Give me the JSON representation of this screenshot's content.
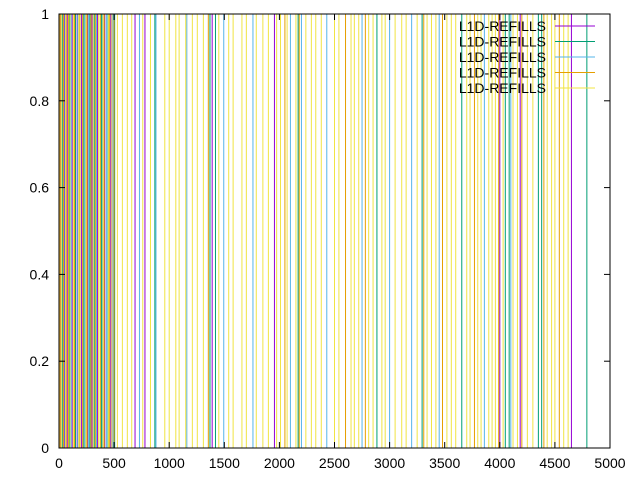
{
  "chart_data": {
    "type": "line",
    "title": "",
    "xlabel": "",
    "ylabel": "",
    "xlim": [
      0,
      5000
    ],
    "ylim": [
      0,
      1
    ],
    "x_ticks": [
      "0",
      "500",
      "1000",
      "1500",
      "2000",
      "2500",
      "3000",
      "3500",
      "4000",
      "4500",
      "5000"
    ],
    "y_ticks": [
      "0",
      "0.2",
      "0.4",
      "0.6",
      "0.8",
      "1"
    ],
    "grid": false,
    "legend_position": "top-right",
    "series": [
      {
        "name": "L1D-REFILLS",
        "color": "#9400d3",
        "x": [
          15,
          48,
          75,
          120,
          165,
          205,
          260,
          300,
          350,
          415,
          470,
          690,
          780,
          1390,
          1955,
          4000,
          4185,
          4650
        ]
      },
      {
        "name": "L1D-REFILLS",
        "color": "#009e73",
        "x": [
          30,
          95,
          150,
          225,
          280,
          320,
          385,
          445,
          505,
          870,
          1370,
          1420,
          2170,
          2885,
          3295,
          3655,
          4050,
          4085,
          4350,
          4380,
          4790
        ]
      },
      {
        "name": "L1D-REFILLS",
        "color": "#56b4e9",
        "x": [
          55,
          110,
          170,
          235,
          270,
          340,
          395,
          430,
          490,
          730,
          880,
          1160,
          1495,
          1760,
          2100,
          2200,
          2430,
          2750,
          3000,
          3200,
          3450,
          3860,
          4100
        ]
      },
      {
        "name": "L1D-REFILLS",
        "color": "#e69f00",
        "x": [
          10,
          40,
          65,
          85,
          140,
          190,
          215,
          255,
          290,
          330,
          375,
          410,
          460,
          500,
          1355,
          2050,
          2180,
          2600,
          2780,
          3310,
          3480,
          3770,
          3990,
          4200,
          4400,
          4540
        ]
      },
      {
        "name": "L1D-REFILLS",
        "color": "#f0e442",
        "x": [
          20,
          60,
          100,
          130,
          180,
          245,
          310,
          360,
          400,
          450,
          480,
          530,
          575,
          620,
          660,
          760,
          830,
          960,
          1000,
          1060,
          1090,
          1150,
          1210,
          1255,
          1310,
          1450,
          1540,
          1580,
          1660,
          1700,
          1790,
          1850,
          1900,
          1975,
          2010,
          2070,
          2150,
          2240,
          2290,
          2330,
          2380,
          2500,
          2540,
          2650,
          2680,
          2720,
          2810,
          2850,
          2930,
          2960,
          3050,
          3110,
          3150,
          3250,
          3340,
          3380,
          3420,
          3520,
          3560,
          3600,
          3700,
          3730,
          3800,
          3830,
          3900,
          3930,
          3960,
          4030,
          4120,
          4160,
          4250,
          4300,
          4430,
          4470,
          4500,
          4580,
          4620
        ]
      }
    ]
  }
}
